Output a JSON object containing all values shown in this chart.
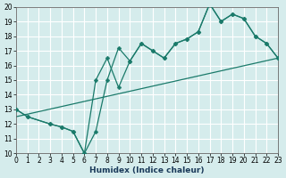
{
  "xlabel": "Humidex (Indice chaleur)",
  "xlim": [
    0,
    23
  ],
  "ylim": [
    10,
    20
  ],
  "xticks": [
    0,
    1,
    2,
    3,
    4,
    5,
    6,
    7,
    8,
    9,
    10,
    11,
    12,
    13,
    14,
    15,
    16,
    17,
    18,
    19,
    20,
    21,
    22,
    23
  ],
  "yticks": [
    10,
    11,
    12,
    13,
    14,
    15,
    16,
    17,
    18,
    19,
    20
  ],
  "bg_color": "#d5ecec",
  "grid_color": "#b8d8d8",
  "line_color": "#1a7a6a",
  "line1_x": [
    0,
    1,
    3,
    4,
    5,
    6,
    7,
    8,
    9,
    10,
    11,
    12,
    13,
    14,
    15,
    16,
    17,
    18,
    19,
    20,
    21,
    22,
    23
  ],
  "line1_y": [
    13,
    12.5,
    12,
    11.8,
    11.5,
    10,
    15.0,
    16.5,
    14.5,
    16.3,
    17.5,
    17.0,
    16.5,
    17.5,
    17.8,
    18.3,
    20.2,
    19.0,
    19.5,
    19.2,
    18.0,
    17.5,
    16.5
  ],
  "line2_x": [
    0,
    1,
    3,
    4,
    5,
    6,
    7,
    8,
    9,
    10,
    11,
    12,
    13,
    14,
    15,
    16,
    17,
    18,
    19,
    20,
    21,
    22,
    23
  ],
  "line2_y": [
    13,
    12.5,
    12,
    11.8,
    11.5,
    10,
    11.5,
    15.0,
    17.2,
    16.3,
    17.5,
    17.0,
    16.5,
    17.5,
    17.8,
    18.3,
    20.2,
    19.0,
    19.5,
    19.2,
    18.0,
    17.5,
    16.5
  ],
  "line3_x": [
    0,
    23
  ],
  "line3_y": [
    12.5,
    16.5
  ],
  "markersize": 2.5,
  "linewidth": 0.9,
  "xlabel_fontsize": 6.5,
  "tick_fontsize": 5.5
}
